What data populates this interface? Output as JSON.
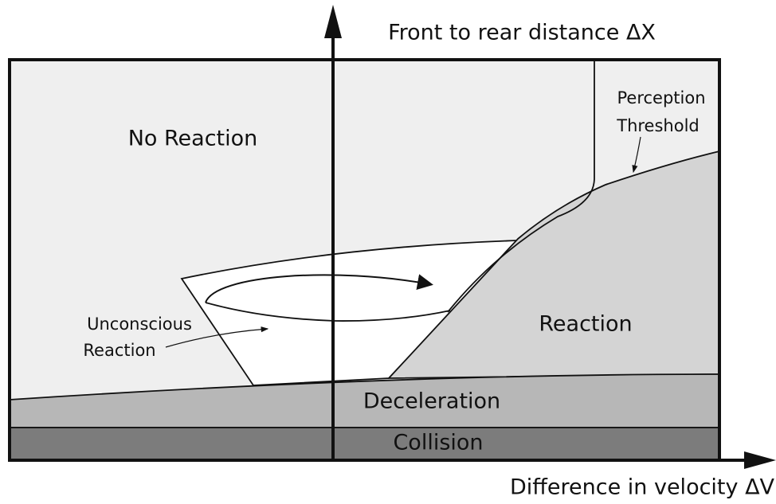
{
  "axes": {
    "y_label": "Front to rear distance ΔX",
    "x_label": "Difference in velocity ΔV"
  },
  "regions": {
    "no_reaction": "No Reaction",
    "reaction": "Reaction",
    "deceleration": "Deceleration",
    "collision": "Collision"
  },
  "annotations": {
    "unconscious_reaction": [
      "Unconscious",
      "Reaction"
    ],
    "perception_threshold": [
      "Perception",
      "Threshold"
    ]
  }
}
